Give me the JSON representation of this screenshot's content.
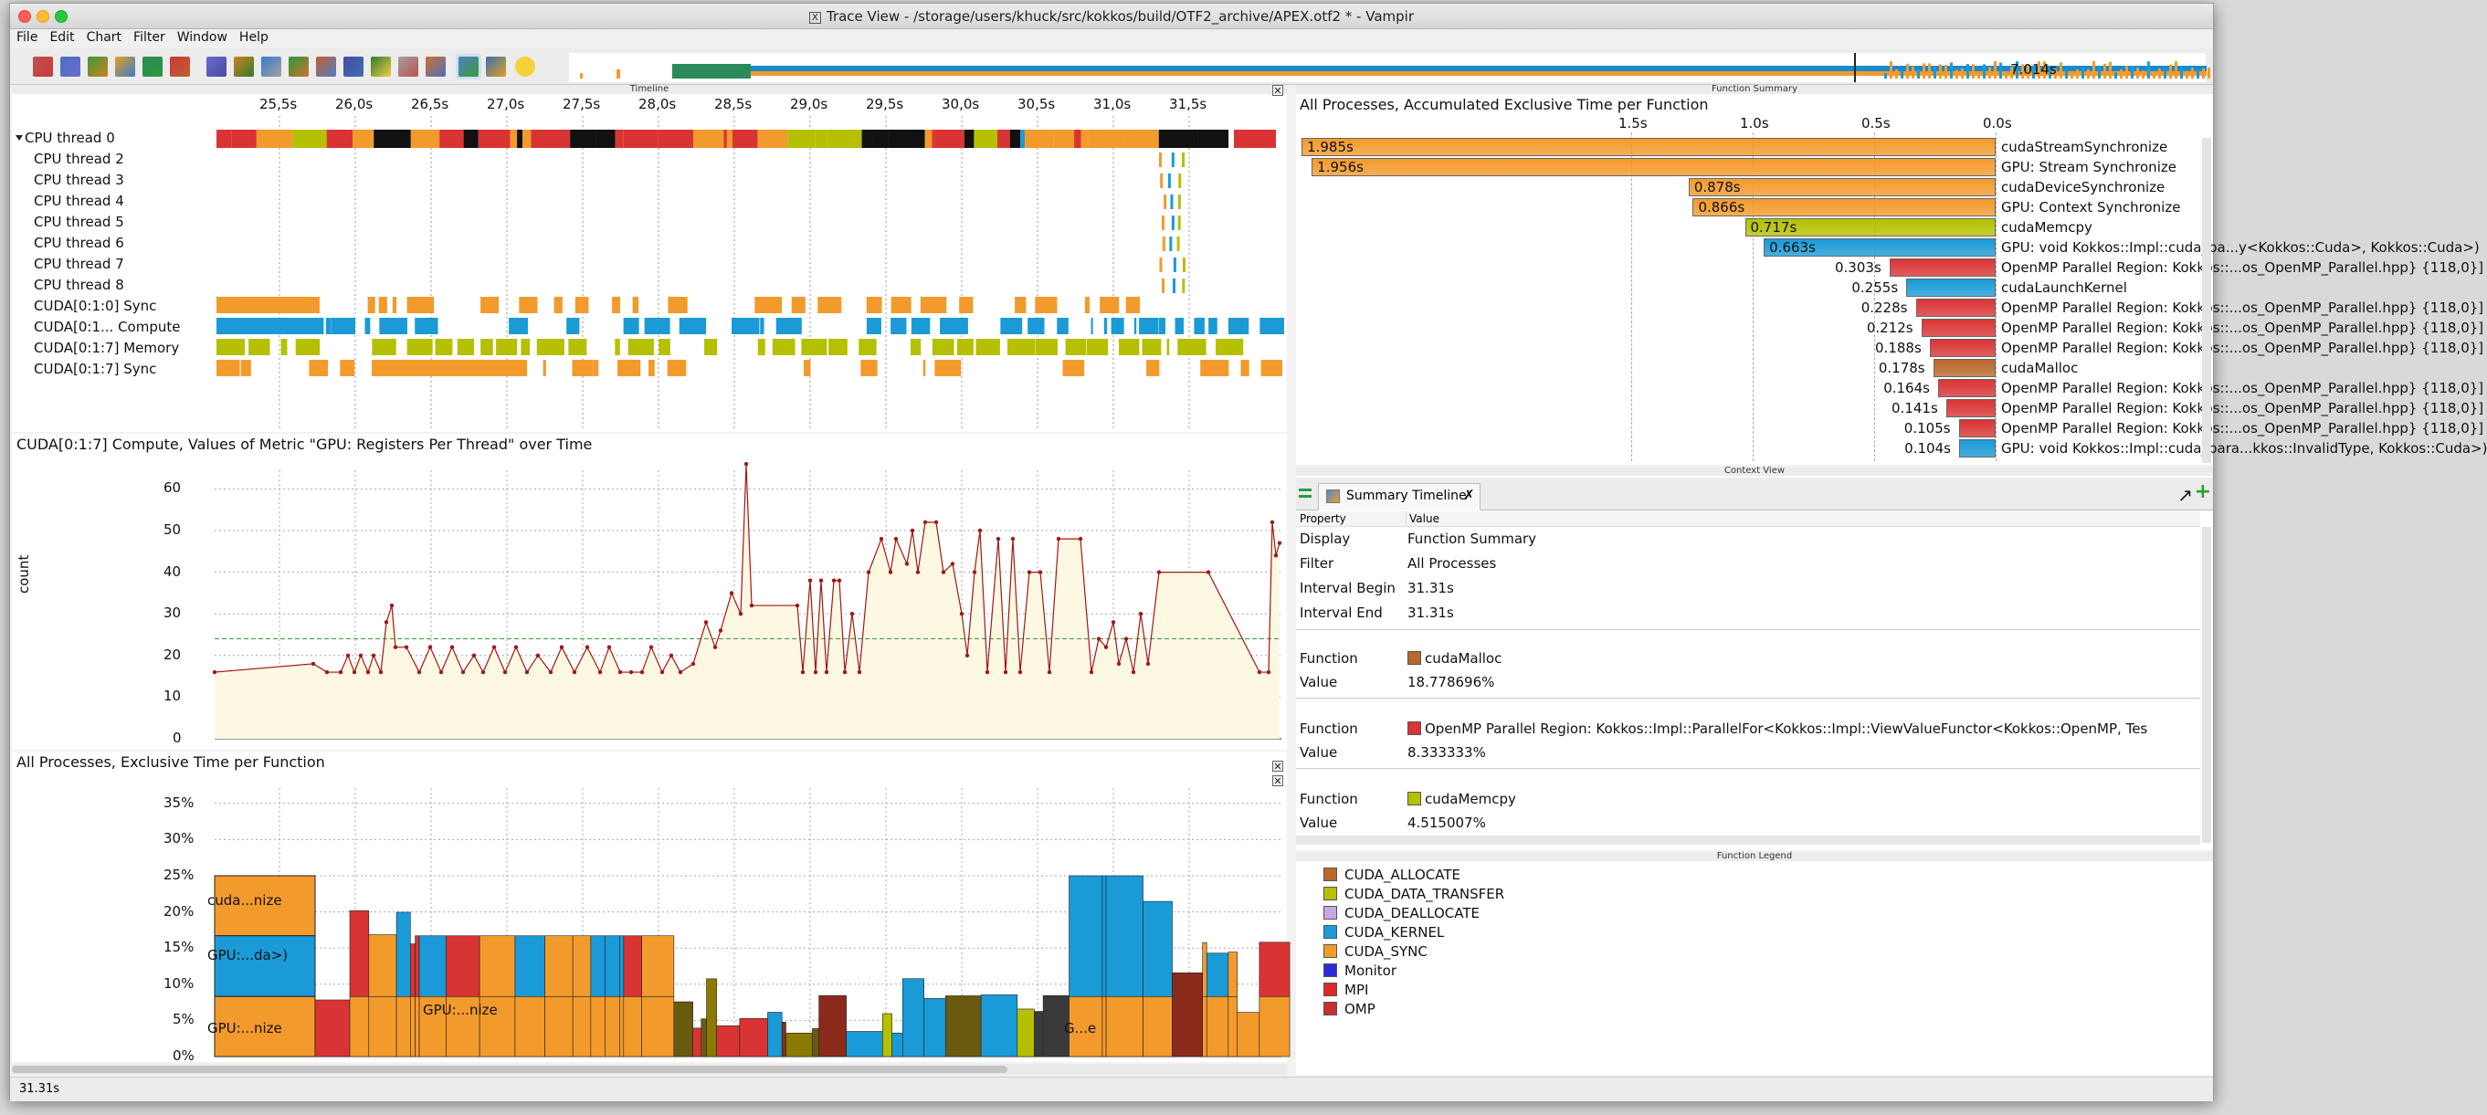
{
  "window": {
    "title": "Trace View - /storage/users/khuck/src/kokkos/build/OTF2_archive/APEX.otf2 * - Vampir",
    "x_glyph": "X"
  },
  "menu": [
    "File",
    "Edit",
    "Chart",
    "Filter",
    "Window",
    "Help"
  ],
  "overview": {
    "label": "7.014s"
  },
  "timeline": {
    "header": "Timeline",
    "ticks": [
      "25,5s",
      "26,0s",
      "26,5s",
      "27,0s",
      "27,5s",
      "28,0s",
      "28,5s",
      "29,0s",
      "29,5s",
      "30,0s",
      "30,5s",
      "31,0s",
      "31,5s"
    ],
    "rows": [
      "CPU thread 0",
      "CPU thread 2",
      "CPU thread 3",
      "CPU thread 4",
      "CPU thread 5",
      "CPU thread 6",
      "CPU thread 7",
      "CPU thread 8",
      "CUDA[0:1:0] Sync",
      "CUDA[0:1... Compute",
      "CUDA[0:1:7] Memory",
      "CUDA[0:1:7] Sync"
    ]
  },
  "metric_chart": {
    "title": "CUDA[0:1:7] Compute, Values of Metric \"GPU: Registers Per Thread\" over Time",
    "ylabel": "count",
    "yticks": [
      "60",
      "50",
      "40",
      "30",
      "20",
      "10",
      "0"
    ]
  },
  "excl_chart": {
    "title": "All Processes, Exclusive Time per Function",
    "yticks": [
      "35%",
      "30%",
      "25%",
      "20%",
      "15%",
      "10%",
      "5%",
      "0%"
    ],
    "labels": [
      "cuda...nize",
      "GPU:...da>)",
      "GPU:...nize",
      "GPU:...nize",
      "G...e"
    ]
  },
  "function_summary": {
    "header": "Function Summary",
    "title": "All Processes, Accumulated Exclusive Time per Function",
    "ticks": [
      "1.5s",
      "1.0s",
      "0.5s",
      "0.0s"
    ],
    "rows": [
      {
        "value": "1.985s",
        "name": "cudaStreamSynchronize",
        "color": "#f39a2c",
        "sec": 1.985
      },
      {
        "value": "1.956s",
        "name": "GPU: Stream Synchronize",
        "color": "#f39a2c",
        "sec": 1.956
      },
      {
        "value": "0.878s",
        "name": "cudaDeviceSynchronize",
        "color": "#f39a2c",
        "sec": 0.878
      },
      {
        "value": "0.866s",
        "name": "GPU: Context Synchronize",
        "color": "#f39a2c",
        "sec": 0.866
      },
      {
        "value": "0.717s",
        "name": "cudaMemcpy",
        "color": "#b4c000",
        "sec": 0.717
      },
      {
        "value": "0.663s",
        "name": "GPU: void Kokkos::Impl::cuda_pa...y<Kokkos::Cuda>, Kokkos::Cuda>)",
        "color": "#1a9ad6",
        "sec": 0.663
      },
      {
        "value": "0.303s",
        "name": "OpenMP Parallel Region: Kokkos::...os_OpenMP_Parallel.hpp} {118,0}]",
        "color": "#d93434",
        "sec": 0.303
      },
      {
        "value": "0.255s",
        "name": "cudaLaunchKernel",
        "color": "#1a9ad6",
        "sec": 0.255
      },
      {
        "value": "0.228s",
        "name": "OpenMP Parallel Region: Kokkos::...os_OpenMP_Parallel.hpp} {118,0}]",
        "color": "#d93434",
        "sec": 0.228
      },
      {
        "value": "0.212s",
        "name": "OpenMP Parallel Region: Kokkos::...os_OpenMP_Parallel.hpp} {118,0}]",
        "color": "#d93434",
        "sec": 0.212
      },
      {
        "value": "0.188s",
        "name": "OpenMP Parallel Region: Kokkos::...os_OpenMP_Parallel.hpp} {118,0}]",
        "color": "#d93434",
        "sec": 0.188
      },
      {
        "value": "0.178s",
        "name": "cudaMalloc",
        "color": "#b8682a",
        "sec": 0.178
      },
      {
        "value": "0.164s",
        "name": "OpenMP Parallel Region: Kokkos::...os_OpenMP_Parallel.hpp} {118,0}]",
        "color": "#d93434",
        "sec": 0.164
      },
      {
        "value": "0.141s",
        "name": "OpenMP Parallel Region: Kokkos::...os_OpenMP_Parallel.hpp} {118,0}]",
        "color": "#d93434",
        "sec": 0.141
      },
      {
        "value": "0.105s",
        "name": "OpenMP Parallel Region: Kokkos::...os_OpenMP_Parallel.hpp} {118,0}]",
        "color": "#d93434",
        "sec": 0.105
      },
      {
        "value": "0.104s",
        "name": "GPU: void Kokkos::Impl::cuda_para...kkos::InvalidType, Kokkos::Cuda>)",
        "color": "#1a9ad6",
        "sec": 0.104
      }
    ]
  },
  "context_view": {
    "header": "Context View",
    "tab": "Summary Timeline",
    "col_property": "Property",
    "col_value": "Value",
    "rows": [
      {
        "k": "Display",
        "v": "Function Summary"
      },
      {
        "k": "Filter",
        "v": "All Processes"
      },
      {
        "k": "Interval Begin",
        "v": "31.31s"
      },
      {
        "k": "Interval End",
        "v": "31.31s"
      }
    ],
    "functions": [
      {
        "fk": "Function",
        "fname": "cudaMalloc",
        "color": "#b8682a",
        "vk": "Value",
        "value": "18.778696%"
      },
      {
        "fk": "Function",
        "fname": "OpenMP Parallel Region: Kokkos::Impl::ParallelFor<Kokkos::Impl::ViewValueFunctor<Kokkos::OpenMP, Tes",
        "color": "#d93434",
        "vk": "Value",
        "value": "8.333333%"
      },
      {
        "fk": "Function",
        "fname": "cudaMemcpy",
        "color": "#b4c000",
        "vk": "Value",
        "value": "4.515007%"
      }
    ]
  },
  "legend": {
    "header": "Function Legend",
    "items": [
      {
        "name": "CUDA_ALLOCATE",
        "color": "#b8682a"
      },
      {
        "name": "CUDA_DATA_TRANSFER",
        "color": "#b4c000"
      },
      {
        "name": "CUDA_DEALLOCATE",
        "color": "#c7a6e8"
      },
      {
        "name": "CUDA_KERNEL",
        "color": "#1a9ad6"
      },
      {
        "name": "CUDA_SYNC",
        "color": "#f39a2c"
      },
      {
        "name": "Monitor",
        "color": "#2a2ad8"
      },
      {
        "name": "MPI",
        "color": "#e02828"
      },
      {
        "name": "OMP",
        "color": "#c83030"
      }
    ]
  },
  "status": {
    "text": "31.31s"
  }
}
